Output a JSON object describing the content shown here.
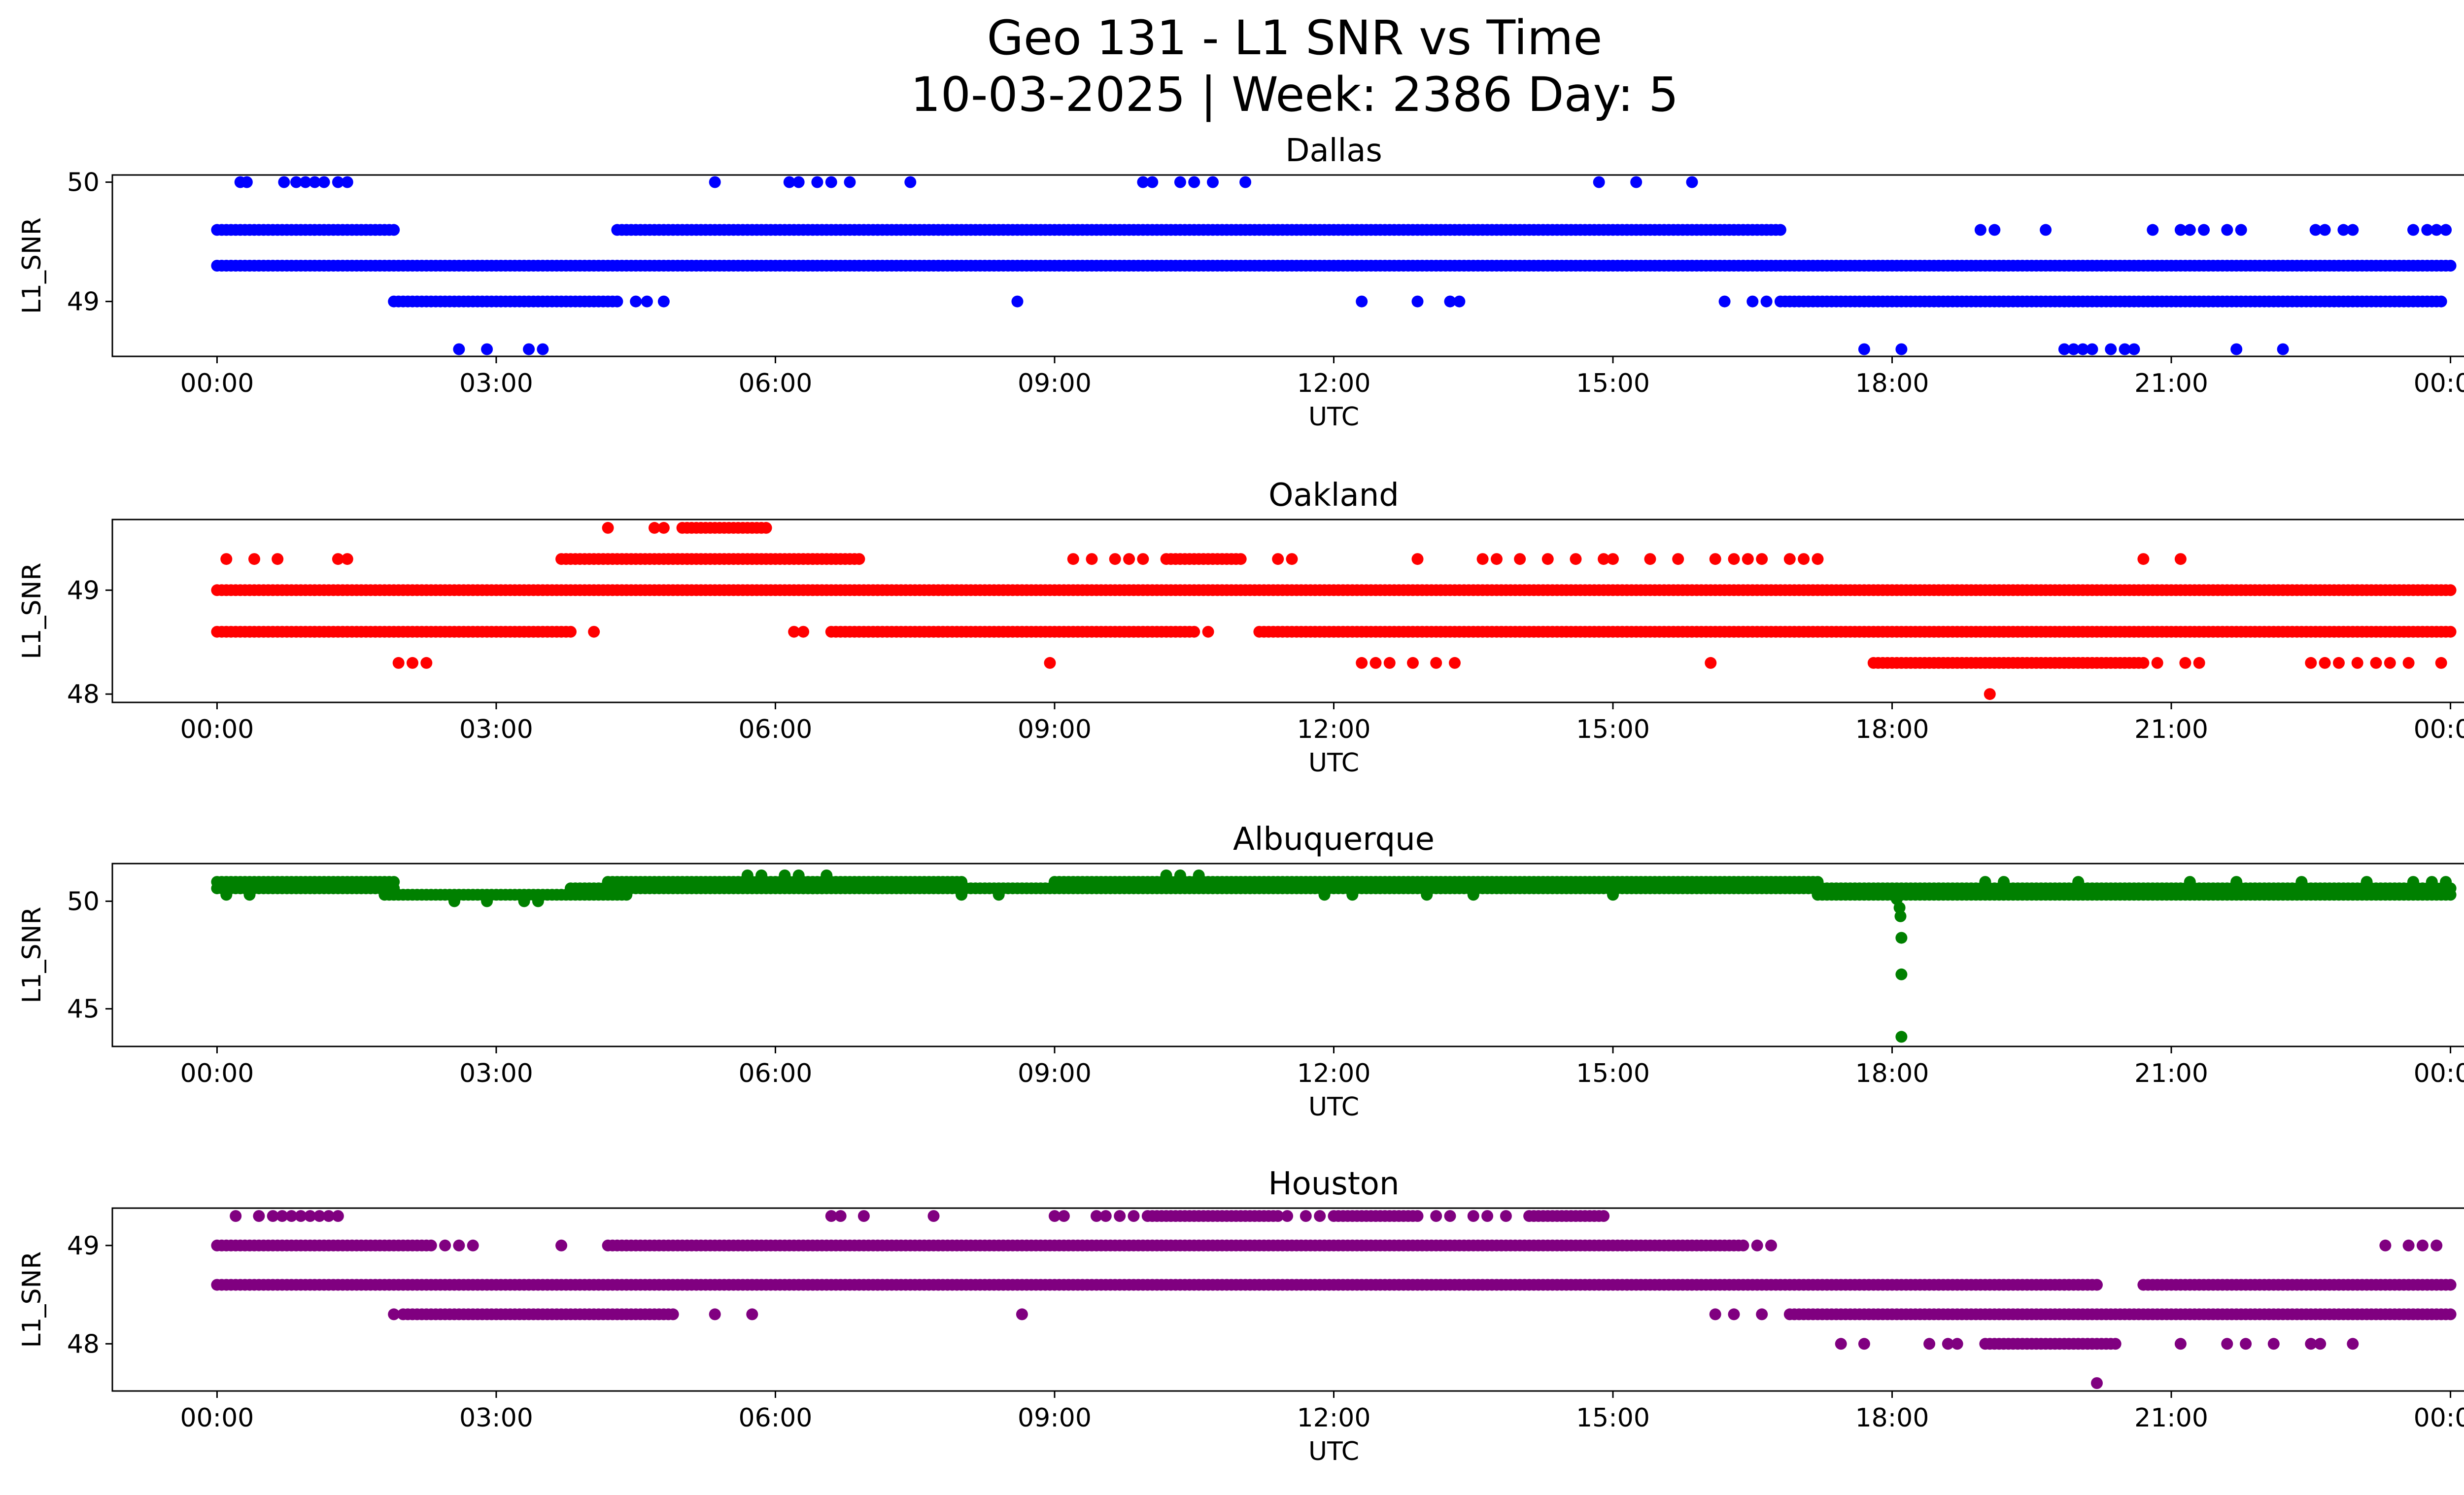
{
  "chart_data": {
    "type": "scatter",
    "title": "Geo 131 - L1 SNR vs Time",
    "subtitle": "10-03-2025 | Week: 2386 Day: 5",
    "xlabel": "UTC",
    "ylabel": "L1_SNR",
    "xlim_hours": [
      -1.125,
      25.125
    ],
    "x_ticks": [
      {
        "h": 0,
        "label": "00:00"
      },
      {
        "h": 3,
        "label": "03:00"
      },
      {
        "h": 6,
        "label": "06:00"
      },
      {
        "h": 9,
        "label": "09:00"
      },
      {
        "h": 12,
        "label": "12:00"
      },
      {
        "h": 15,
        "label": "15:00"
      },
      {
        "h": 18,
        "label": "18:00"
      },
      {
        "h": 21,
        "label": "21:00"
      },
      {
        "h": 24,
        "label": "00:00"
      }
    ],
    "panels": [
      {
        "name": "Dallas",
        "color": "#0000ff",
        "ylim": [
          48.54,
          50.06
        ],
        "yticks": [
          {
            "v": 49,
            "label": "49"
          },
          {
            "v": 50,
            "label": "50"
          }
        ],
        "runs": [
          [
            49.3,
            0.0,
            24.0
          ],
          [
            49.6,
            0.0,
            1.9
          ],
          [
            49.6,
            4.3,
            16.8
          ],
          [
            49.0,
            1.9,
            4.3
          ],
          [
            49.0,
            16.8,
            23.9
          ]
        ],
        "points": [
          [
            50.0,
            0.25
          ],
          [
            50.0,
            0.32
          ],
          [
            50.0,
            0.72
          ],
          [
            50.0,
            0.85
          ],
          [
            50.0,
            0.95
          ],
          [
            50.0,
            1.05
          ],
          [
            50.0,
            1.15
          ],
          [
            50.0,
            1.3
          ],
          [
            50.0,
            1.4
          ],
          [
            50.0,
            5.35
          ],
          [
            50.0,
            6.15
          ],
          [
            50.0,
            6.25
          ],
          [
            50.0,
            6.45
          ],
          [
            50.0,
            6.6
          ],
          [
            50.0,
            6.8
          ],
          [
            50.0,
            7.45
          ],
          [
            50.0,
            9.95
          ],
          [
            50.0,
            10.05
          ],
          [
            50.0,
            10.35
          ],
          [
            50.0,
            10.5
          ],
          [
            50.0,
            10.7
          ],
          [
            50.0,
            11.05
          ],
          [
            50.0,
            14.85
          ],
          [
            50.0,
            15.25
          ],
          [
            50.0,
            15.85
          ],
          [
            49.6,
            18.95
          ],
          [
            49.6,
            19.1
          ],
          [
            49.6,
            19.65
          ],
          [
            49.6,
            20.8
          ],
          [
            49.6,
            21.1
          ],
          [
            49.6,
            21.2
          ],
          [
            49.6,
            21.35
          ],
          [
            49.6,
            21.6
          ],
          [
            49.6,
            21.75
          ],
          [
            49.6,
            22.55
          ],
          [
            49.6,
            22.65
          ],
          [
            49.6,
            22.85
          ],
          [
            49.6,
            22.95
          ],
          [
            49.6,
            23.6
          ],
          [
            49.6,
            23.75
          ],
          [
            49.6,
            23.85
          ],
          [
            49.6,
            23.95
          ],
          [
            49.0,
            4.5
          ],
          [
            49.0,
            4.62
          ],
          [
            49.0,
            4.8
          ],
          [
            49.0,
            8.6
          ],
          [
            49.0,
            12.3
          ],
          [
            49.0,
            12.9
          ],
          [
            49.0,
            13.25
          ],
          [
            49.0,
            13.35
          ],
          [
            49.0,
            16.2
          ],
          [
            49.0,
            16.5
          ],
          [
            49.0,
            16.65
          ],
          [
            48.6,
            2.6
          ],
          [
            48.6,
            2.9
          ],
          [
            48.6,
            3.35
          ],
          [
            48.6,
            3.5
          ],
          [
            48.6,
            17.7
          ],
          [
            48.6,
            18.1
          ],
          [
            48.6,
            19.85
          ],
          [
            48.6,
            19.95
          ],
          [
            48.6,
            20.05
          ],
          [
            48.6,
            20.15
          ],
          [
            48.6,
            20.35
          ],
          [
            48.6,
            20.5
          ],
          [
            48.6,
            20.6
          ],
          [
            48.6,
            21.7
          ],
          [
            48.6,
            22.2
          ]
        ]
      },
      {
        "name": "Oakland",
        "color": "#ff0000",
        "ylim": [
          47.92,
          49.68
        ],
        "yticks": [
          {
            "v": 48,
            "label": "48"
          },
          {
            "v": 49,
            "label": "49"
          }
        ],
        "runs": [
          [
            49.0,
            0.0,
            24.0
          ],
          [
            48.6,
            0.0,
            3.8
          ],
          [
            48.6,
            6.6,
            10.5
          ],
          [
            48.6,
            11.2,
            24.0
          ],
          [
            49.3,
            3.7,
            6.9
          ],
          [
            49.3,
            10.2,
            11.0
          ],
          [
            48.3,
            17.8,
            20.7
          ],
          [
            49.6,
            5.0,
            5.9
          ]
        ],
        "points": [
          [
            49.3,
            0.1
          ],
          [
            49.3,
            0.4
          ],
          [
            49.3,
            0.65
          ],
          [
            49.3,
            1.3
          ],
          [
            49.3,
            1.4
          ],
          [
            49.3,
            9.2
          ],
          [
            49.3,
            9.4
          ],
          [
            49.3,
            9.65
          ],
          [
            49.3,
            9.8
          ],
          [
            49.3,
            9.95
          ],
          [
            49.3,
            11.4
          ],
          [
            49.3,
            11.55
          ],
          [
            49.3,
            12.9
          ],
          [
            49.3,
            13.6
          ],
          [
            49.3,
            13.75
          ],
          [
            49.3,
            14.0
          ],
          [
            49.3,
            14.3
          ],
          [
            49.3,
            14.6
          ],
          [
            49.3,
            14.9
          ],
          [
            49.3,
            15.0
          ],
          [
            49.3,
            15.4
          ],
          [
            49.3,
            15.7
          ],
          [
            49.3,
            16.1
          ],
          [
            49.3,
            16.3
          ],
          [
            49.3,
            16.45
          ],
          [
            49.3,
            16.6
          ],
          [
            49.3,
            16.9
          ],
          [
            49.3,
            17.05
          ],
          [
            49.3,
            17.2
          ],
          [
            49.3,
            20.7
          ],
          [
            49.3,
            21.1
          ],
          [
            49.6,
            4.2
          ],
          [
            49.6,
            4.7
          ],
          [
            49.6,
            4.8
          ],
          [
            48.6,
            4.05
          ],
          [
            48.6,
            6.2
          ],
          [
            48.6,
            6.3
          ],
          [
            48.6,
            10.65
          ],
          [
            48.3,
            1.95
          ],
          [
            48.3,
            2.1
          ],
          [
            48.3,
            2.25
          ],
          [
            48.3,
            8.95
          ],
          [
            48.3,
            12.3
          ],
          [
            48.3,
            12.45
          ],
          [
            48.3,
            12.6
          ],
          [
            48.3,
            12.85
          ],
          [
            48.3,
            13.1
          ],
          [
            48.3,
            13.3
          ],
          [
            48.3,
            16.05
          ],
          [
            48.3,
            20.85
          ],
          [
            48.3,
            21.15
          ],
          [
            48.3,
            21.3
          ],
          [
            48.3,
            22.5
          ],
          [
            48.3,
            22.65
          ],
          [
            48.3,
            22.8
          ],
          [
            48.3,
            23.0
          ],
          [
            48.3,
            23.2
          ],
          [
            48.3,
            23.35
          ],
          [
            48.3,
            23.55
          ],
          [
            48.3,
            23.9
          ],
          [
            48.0,
            19.05
          ]
        ]
      },
      {
        "name": "Albuquerque",
        "color": "#008000",
        "ylim": [
          43.25,
          51.75
        ],
        "yticks": [
          {
            "v": 45,
            "label": "45"
          },
          {
            "v": 50,
            "label": "50"
          }
        ],
        "runs": [
          [
            50.9,
            0.0,
            1.9
          ],
          [
            50.6,
            0.0,
            1.9
          ],
          [
            50.3,
            1.8,
            4.4
          ],
          [
            50.6,
            3.8,
            6.5
          ],
          [
            50.9,
            4.2,
            8.0
          ],
          [
            50.6,
            6.3,
            24.0
          ],
          [
            50.9,
            9.0,
            17.2
          ],
          [
            50.3,
            17.2,
            24.0
          ]
        ],
        "points": [
          [
            50.3,
            0.1
          ],
          [
            50.3,
            0.35
          ],
          [
            50.0,
            2.55
          ],
          [
            50.0,
            2.9
          ],
          [
            50.0,
            3.3
          ],
          [
            50.0,
            3.45
          ],
          [
            51.2,
            5.7
          ],
          [
            51.2,
            5.85
          ],
          [
            51.2,
            6.1
          ],
          [
            51.2,
            6.25
          ],
          [
            51.2,
            6.55
          ],
          [
            51.2,
            10.2
          ],
          [
            51.2,
            10.35
          ],
          [
            51.2,
            10.55
          ],
          [
            50.3,
            8.0
          ],
          [
            50.3,
            8.4
          ],
          [
            50.3,
            11.9
          ],
          [
            50.3,
            12.2
          ],
          [
            50.3,
            13.0
          ],
          [
            50.3,
            13.5
          ],
          [
            50.3,
            15.0
          ],
          [
            50.9,
            19.0
          ],
          [
            50.9,
            19.2
          ],
          [
            50.9,
            20.0
          ],
          [
            50.9,
            21.2
          ],
          [
            50.9,
            21.7
          ],
          [
            50.9,
            22.4
          ],
          [
            50.9,
            23.1
          ],
          [
            50.9,
            23.6
          ],
          [
            50.9,
            23.8
          ],
          [
            50.9,
            23.95
          ],
          [
            50.1,
            18.05
          ],
          [
            49.7,
            18.08
          ],
          [
            49.3,
            18.09
          ],
          [
            48.3,
            18.1
          ],
          [
            46.6,
            18.1
          ],
          [
            43.7,
            18.1
          ]
        ]
      },
      {
        "name": "Houston",
        "color": "#800080",
        "ylim": [
          47.52,
          49.38
        ],
        "yticks": [
          {
            "v": 48,
            "label": "48"
          },
          {
            "v": 49,
            "label": "49"
          }
        ],
        "runs": [
          [
            48.6,
            0.0,
            20.2
          ],
          [
            48.6,
            20.7,
            24.0
          ],
          [
            49.0,
            0.0,
            2.3
          ],
          [
            49.0,
            4.2,
            16.4
          ],
          [
            48.3,
            2.0,
            4.9
          ],
          [
            48.3,
            16.9,
            24.0
          ],
          [
            49.3,
            10.0,
            11.4
          ],
          [
            49.3,
            12.0,
            12.9
          ],
          [
            49.3,
            14.1,
            14.9
          ],
          [
            48.0,
            19.0,
            20.4
          ]
        ],
        "points": [
          [
            49.3,
            0.2
          ],
          [
            49.3,
            0.45
          ],
          [
            49.3,
            0.6
          ],
          [
            49.3,
            0.7
          ],
          [
            49.3,
            0.8
          ],
          [
            49.3,
            0.9
          ],
          [
            49.3,
            1.0
          ],
          [
            49.3,
            1.1
          ],
          [
            49.3,
            1.2
          ],
          [
            49.3,
            1.3
          ],
          [
            49.3,
            6.6
          ],
          [
            49.3,
            6.7
          ],
          [
            49.3,
            6.95
          ],
          [
            49.3,
            7.7
          ],
          [
            49.3,
            9.0
          ],
          [
            49.3,
            9.1
          ],
          [
            49.3,
            9.45
          ],
          [
            49.3,
            9.55
          ],
          [
            49.3,
            9.7
          ],
          [
            49.3,
            9.85
          ],
          [
            49.3,
            11.5
          ],
          [
            49.3,
            11.7
          ],
          [
            49.3,
            11.85
          ],
          [
            49.3,
            13.1
          ],
          [
            49.3,
            13.25
          ],
          [
            49.3,
            13.5
          ],
          [
            49.3,
            13.65
          ],
          [
            49.3,
            13.85
          ],
          [
            49.0,
            2.45
          ],
          [
            49.0,
            2.6
          ],
          [
            49.0,
            2.75
          ],
          [
            49.0,
            3.7
          ],
          [
            49.0,
            16.55
          ],
          [
            49.0,
            16.7
          ],
          [
            49.0,
            23.3
          ],
          [
            49.0,
            23.55
          ],
          [
            49.0,
            23.7
          ],
          [
            49.0,
            23.85
          ],
          [
            48.3,
            1.9
          ],
          [
            48.3,
            5.35
          ],
          [
            48.3,
            5.75
          ],
          [
            48.3,
            8.65
          ],
          [
            48.3,
            16.1
          ],
          [
            48.3,
            16.3
          ],
          [
            48.3,
            16.6
          ],
          [
            48.0,
            17.45
          ],
          [
            48.0,
            17.7
          ],
          [
            48.0,
            18.4
          ],
          [
            48.0,
            18.6
          ],
          [
            48.0,
            18.7
          ],
          [
            48.0,
            21.1
          ],
          [
            48.0,
            21.6
          ],
          [
            48.0,
            21.8
          ],
          [
            48.0,
            22.1
          ],
          [
            48.0,
            22.5
          ],
          [
            48.0,
            22.6
          ],
          [
            48.0,
            22.95
          ],
          [
            47.6,
            20.2
          ]
        ]
      }
    ]
  }
}
